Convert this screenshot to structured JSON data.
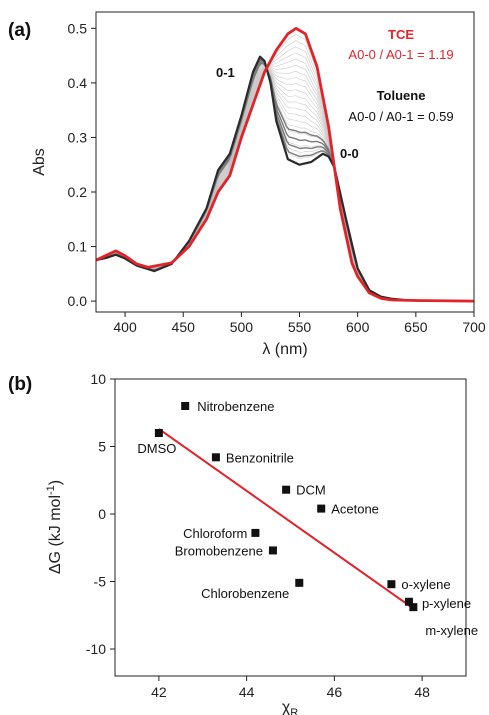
{
  "chart_data": [
    {
      "panel_label": "(a)",
      "type": "line",
      "xlabel": "λ (nm)",
      "ylabel": "Abs",
      "xlim": [
        375,
        700
      ],
      "ylim": [
        -0.02,
        0.53
      ],
      "xticks": [
        400,
        450,
        500,
        550,
        600,
        650,
        700
      ],
      "yticks": [
        0.0,
        0.1,
        0.2,
        0.3,
        0.4,
        0.5
      ],
      "annotations": {
        "peak_01": "0-1",
        "peak_00": "0-0",
        "tce_name": "TCE",
        "tce_ratio": "A0-0 / A0-1 = 1.19",
        "toluene_name": "Toluene",
        "toluene_ratio": "A0-0 / A0-1 = 0.59"
      },
      "colors": {
        "TCE": "#e3232a",
        "Toluene": "#2b2b2b",
        "intermediate": "#bdbdbd",
        "grey_band": "#7a7a7a"
      },
      "series": [
        {
          "name": "Toluene",
          "x": [
            375,
            385,
            392,
            400,
            410,
            425,
            440,
            455,
            470,
            480,
            490,
            500,
            510,
            516,
            520,
            525,
            530,
            540,
            550,
            560,
            570,
            575,
            580,
            590,
            600,
            610,
            620,
            630,
            640,
            650,
            700
          ],
          "y": [
            0.075,
            0.08,
            0.085,
            0.078,
            0.065,
            0.055,
            0.068,
            0.11,
            0.17,
            0.24,
            0.27,
            0.34,
            0.42,
            0.448,
            0.44,
            0.4,
            0.33,
            0.26,
            0.25,
            0.255,
            0.27,
            0.265,
            0.245,
            0.15,
            0.06,
            0.02,
            0.008,
            0.004,
            0.002,
            0.001,
            0.0
          ]
        },
        {
          "name": "TCE",
          "x": [
            375,
            385,
            392,
            400,
            410,
            420,
            440,
            455,
            470,
            480,
            490,
            500,
            510,
            520,
            530,
            540,
            547,
            555,
            565,
            575,
            585,
            595,
            600,
            610,
            620,
            630,
            650,
            700
          ],
          "y": [
            0.075,
            0.085,
            0.092,
            0.083,
            0.068,
            0.062,
            0.07,
            0.1,
            0.15,
            0.2,
            0.23,
            0.3,
            0.36,
            0.42,
            0.46,
            0.49,
            0.5,
            0.49,
            0.43,
            0.32,
            0.17,
            0.07,
            0.045,
            0.015,
            0.005,
            0.002,
            0.001,
            0.0
          ]
        }
      ]
    },
    {
      "panel_label": "(b)",
      "type": "scatter",
      "xlabel": "χR",
      "ylabel": "ΔG (kJ mol-1)",
      "xlim": [
        41,
        49
      ],
      "ylim": [
        -12,
        10
      ],
      "xticks": [
        42,
        44,
        46,
        48
      ],
      "yticks": [
        10,
        5,
        0,
        -5,
        -10
      ],
      "fit_line": {
        "x": [
          42.0,
          47.8
        ],
        "y": [
          6.3,
          -7.0
        ],
        "color": "#e3232a"
      },
      "marker_color": "#111111",
      "points": [
        {
          "label": "Nitrobenzene",
          "x": 42.6,
          "y": 8.0
        },
        {
          "label": "DMSO",
          "x": 42.0,
          "y": 6.0
        },
        {
          "label": "Benzonitrile",
          "x": 43.3,
          "y": 4.2
        },
        {
          "label": "DCM",
          "x": 44.9,
          "y": 1.8
        },
        {
          "label": "Acetone",
          "x": 45.7,
          "y": 0.4
        },
        {
          "label": "Chloroform",
          "x": 44.2,
          "y": -1.4
        },
        {
          "label": "Bromobenzene",
          "x": 44.6,
          "y": -2.7
        },
        {
          "label": "Chlorobenzene",
          "x": 45.2,
          "y": -5.1
        },
        {
          "label": "o-xylene",
          "x": 47.3,
          "y": -5.2
        },
        {
          "label": "p-xylene",
          "x": 47.7,
          "y": -6.5
        },
        {
          "label": "m-xylene",
          "x": 47.8,
          "y": -6.9
        }
      ]
    }
  ]
}
